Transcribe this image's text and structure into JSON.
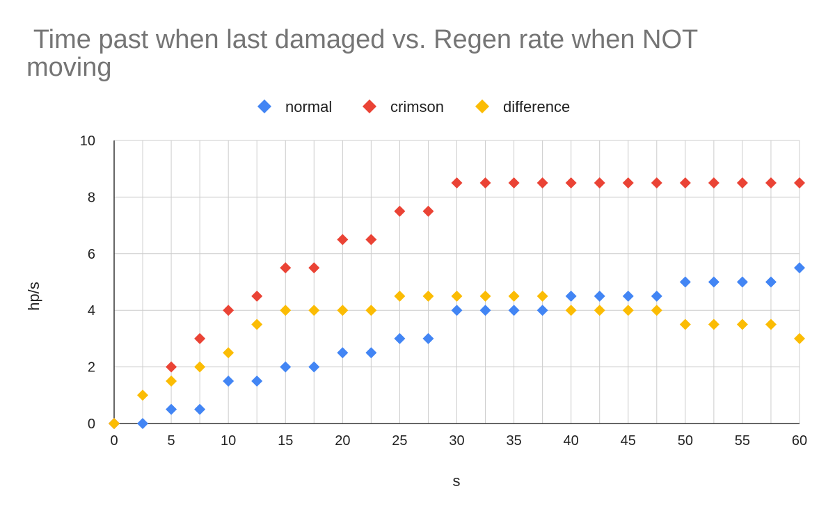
{
  "chart_data": {
    "type": "scatter",
    "title_line1": " Time past when last damaged vs. Regen rate when NOT",
    "title_line2": "moving",
    "xlabel": "s",
    "ylabel": "hp/s",
    "xlim": [
      0,
      60
    ],
    "ylim": [
      0,
      10
    ],
    "xticks": [
      0,
      5,
      10,
      15,
      20,
      25,
      30,
      35,
      40,
      45,
      50,
      55,
      60
    ],
    "yticks": [
      0,
      2,
      4,
      6,
      8,
      10
    ],
    "grid": true,
    "legend_position": "top",
    "x": [
      0,
      2.5,
      5,
      7.5,
      10,
      12.5,
      15,
      17.5,
      20,
      22.5,
      25,
      27.5,
      30,
      32.5,
      35,
      37.5,
      40,
      42.5,
      45,
      47.5,
      50,
      52.5,
      55,
      57.5,
      60
    ],
    "series": [
      {
        "name": "normal",
        "color": "#4285F4",
        "values": [
          0,
          0,
          0.5,
          0.5,
          1.5,
          1.5,
          2,
          2,
          2.5,
          2.5,
          3,
          3,
          4,
          4,
          4,
          4,
          4.5,
          4.5,
          4.5,
          4.5,
          5,
          5,
          5,
          5,
          5.5
        ]
      },
      {
        "name": "crimson",
        "color": "#EA4335",
        "values": [
          0,
          null,
          2,
          3,
          4,
          4.5,
          5.5,
          5.5,
          6.5,
          6.5,
          7.5,
          7.5,
          8.5,
          8.5,
          8.5,
          8.5,
          8.5,
          8.5,
          8.5,
          8.5,
          8.5,
          8.5,
          8.5,
          8.5,
          8.5
        ]
      },
      {
        "name": "difference",
        "color": "#FBBC04",
        "values": [
          0,
          1,
          1.5,
          2,
          2.5,
          3.5,
          4,
          4,
          4,
          4,
          4.5,
          4.5,
          4.5,
          4.5,
          4.5,
          4.5,
          4,
          4,
          4,
          4,
          3.5,
          3.5,
          3.5,
          3.5,
          3
        ]
      }
    ]
  }
}
